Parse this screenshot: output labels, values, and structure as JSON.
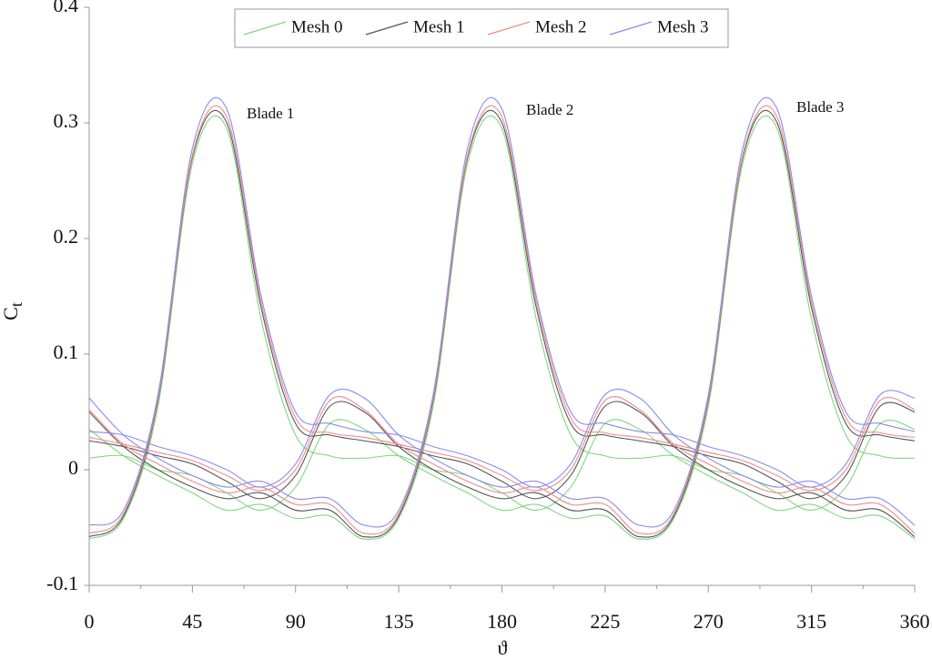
{
  "chart_data": {
    "type": "line",
    "y_label": "C",
    "y_label_sub": "t",
    "x_label": "ϑ",
    "annotations": [
      "Blade 1",
      "Blade 2",
      "Blade 3"
    ],
    "x": [
      0,
      15,
      30,
      45,
      60,
      75,
      90,
      105,
      120,
      135,
      150,
      165,
      180,
      195,
      210,
      225,
      240,
      255,
      270,
      285,
      300,
      315,
      330,
      345,
      360
    ],
    "xlim": [
      0,
      360
    ],
    "xticks": [
      0,
      45,
      90,
      135,
      180,
      225,
      270,
      315,
      360
    ],
    "ylim": [
      -0.1,
      0.4
    ],
    "yticks": [
      -0.1,
      0,
      0.1,
      0.2,
      0.3,
      0.4
    ],
    "legend": "top",
    "series": [
      {
        "name": "Mesh 0",
        "color": "#7fd67f",
        "values": [
          [
            -0.06,
            -0.042,
            0.055,
            0.265,
            0.295,
            0.13,
            0.03,
            0.012,
            0.01,
            0.012,
            0.0,
            -0.005,
            -0.02,
            -0.035,
            -0.015,
            0.04,
            0.035,
            0.012,
            -0.005,
            -0.02,
            -0.035,
            -0.03,
            -0.042,
            -0.04,
            -0.06
          ],
          [
            0.035,
            0.012,
            -0.005,
            -0.02,
            -0.035,
            -0.03,
            -0.042,
            -0.04,
            -0.06,
            -0.042,
            0.055,
            0.265,
            0.295,
            0.13,
            0.03,
            0.012,
            0.01,
            0.012,
            0.0,
            -0.005,
            -0.02,
            -0.035,
            -0.015,
            0.04,
            0.035
          ],
          [
            0.01,
            0.012,
            0.0,
            -0.005,
            -0.02,
            -0.035,
            -0.015,
            0.04,
            0.035,
            0.012,
            -0.005,
            -0.02,
            -0.035,
            -0.03,
            -0.042,
            -0.04,
            -0.06,
            -0.042,
            0.055,
            0.265,
            0.295,
            0.13,
            0.03,
            0.012,
            0.01
          ]
        ]
      },
      {
        "name": "Mesh 1",
        "color": "#555555",
        "values": [
          [
            -0.058,
            -0.04,
            0.06,
            0.27,
            0.3,
            0.14,
            0.04,
            0.03,
            0.025,
            0.02,
            0.012,
            0.005,
            -0.01,
            -0.025,
            -0.005,
            0.055,
            0.05,
            0.02,
            0.0,
            -0.015,
            -0.025,
            -0.02,
            -0.035,
            -0.035,
            -0.058
          ],
          [
            0.05,
            0.02,
            0.0,
            -0.015,
            -0.025,
            -0.02,
            -0.035,
            -0.035,
            -0.058,
            -0.04,
            0.06,
            0.27,
            0.3,
            0.14,
            0.04,
            0.03,
            0.025,
            0.02,
            0.012,
            0.005,
            -0.01,
            -0.025,
            -0.005,
            0.055,
            0.05
          ],
          [
            0.025,
            0.02,
            0.012,
            0.005,
            -0.01,
            -0.025,
            -0.005,
            0.055,
            0.05,
            0.02,
            0.0,
            -0.015,
            -0.025,
            -0.02,
            -0.035,
            -0.035,
            -0.058,
            -0.04,
            0.06,
            0.27,
            0.3,
            0.14,
            0.04,
            0.03,
            0.025
          ]
        ]
      },
      {
        "name": "Mesh 2",
        "color": "#f08a8a",
        "values": [
          [
            -0.055,
            -0.038,
            0.062,
            0.272,
            0.305,
            0.145,
            0.045,
            0.032,
            0.028,
            0.022,
            0.015,
            0.008,
            -0.005,
            -0.018,
            0.0,
            0.06,
            0.052,
            0.022,
            0.005,
            -0.01,
            -0.02,
            -0.015,
            -0.03,
            -0.03,
            -0.055
          ],
          [
            0.052,
            0.022,
            0.005,
            -0.01,
            -0.02,
            -0.015,
            -0.03,
            -0.03,
            -0.055,
            -0.038,
            0.062,
            0.272,
            0.305,
            0.145,
            0.045,
            0.032,
            0.028,
            0.022,
            0.015,
            0.008,
            -0.005,
            -0.018,
            0.0,
            0.06,
            0.052
          ],
          [
            0.028,
            0.022,
            0.015,
            0.008,
            -0.005,
            -0.018,
            0.0,
            0.06,
            0.052,
            0.022,
            0.005,
            -0.01,
            -0.02,
            -0.015,
            -0.03,
            -0.03,
            -0.055,
            -0.038,
            0.062,
            0.272,
            0.305,
            0.145,
            0.045,
            0.032,
            0.028
          ]
        ]
      },
      {
        "name": "Mesh 3",
        "color": "#8a8af0",
        "values": [
          [
            -0.048,
            -0.035,
            0.065,
            0.278,
            0.312,
            0.15,
            0.05,
            0.04,
            0.033,
            0.03,
            0.02,
            0.012,
            0.0,
            -0.015,
            0.005,
            0.065,
            0.062,
            0.03,
            0.01,
            -0.005,
            -0.015,
            -0.01,
            -0.025,
            -0.025,
            -0.048
          ],
          [
            0.062,
            0.03,
            0.01,
            -0.005,
            -0.015,
            -0.01,
            -0.025,
            -0.025,
            -0.048,
            -0.035,
            0.065,
            0.278,
            0.312,
            0.15,
            0.05,
            0.04,
            0.033,
            0.03,
            0.02,
            0.012,
            0.0,
            -0.015,
            0.005,
            0.065,
            0.062
          ],
          [
            0.033,
            0.03,
            0.02,
            0.012,
            0.0,
            -0.015,
            0.005,
            0.065,
            0.062,
            0.03,
            0.01,
            -0.005,
            -0.015,
            -0.01,
            -0.025,
            -0.025,
            -0.048,
            -0.035,
            0.065,
            0.278,
            0.312,
            0.15,
            0.05,
            0.04,
            0.033
          ]
        ]
      }
    ]
  }
}
